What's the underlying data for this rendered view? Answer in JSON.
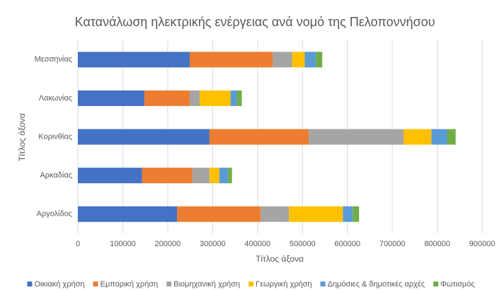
{
  "chart_data": {
    "type": "stacked_barh",
    "title": "Κατανάλωση ηλεκτρικής ενέργειας ανά νομό της Πελοποννήσου",
    "x_label": "Τίτλος άξονα",
    "y_label": "Τίτλος άξονα",
    "categories": [
      "Αργολίδος",
      "Αρκαδίας",
      "Κορινθίας",
      "Λακωνίας",
      "Μεσσηνίας"
    ],
    "series": [
      {
        "name": "Οικιακή χρήση",
        "color": "#4472c4",
        "values": [
          221000,
          143000,
          293000,
          148000,
          249000
        ]
      },
      {
        "name": "Εμπορική χρήση",
        "color": "#ed7d31",
        "values": [
          186000,
          112000,
          221000,
          101000,
          185000
        ]
      },
      {
        "name": "Βιομηχανική χρήση",
        "color": "#a5a5a5",
        "values": [
          63000,
          38000,
          211000,
          22000,
          43000
        ]
      },
      {
        "name": "Γεωργική χρήση",
        "color": "#ffc000",
        "values": [
          120000,
          22000,
          62000,
          69000,
          28000
        ]
      },
      {
        "name": "Δημόσιες & δημοτικές αρχές",
        "color": "#5b9bd5",
        "values": [
          22000,
          19000,
          35000,
          14000,
          25000
        ]
      },
      {
        "name": "Φωτισμός",
        "color": "#70ad47",
        "values": [
          14000,
          9000,
          19000,
          11000,
          14000
        ]
      }
    ],
    "xlim": [
      0,
      900000
    ],
    "xticks": [
      0,
      100000,
      200000,
      300000,
      400000,
      500000,
      600000,
      700000,
      800000,
      900000
    ],
    "grid": true,
    "legend": "bottom"
  }
}
